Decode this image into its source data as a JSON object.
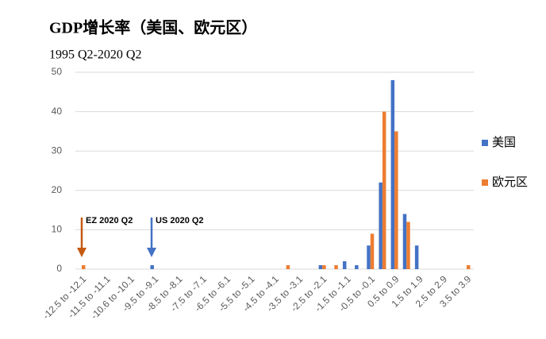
{
  "chart_data": {
    "type": "bar",
    "title": "GDP增长率（美国、欧元区）",
    "subtitle": "1995 Q2-2020 Q2",
    "categories": [
      "-12.5 to -12.1",
      null,
      "-11.5 to -11.1",
      null,
      "-10.6 to -10.1",
      null,
      "-9.5 to -9.1",
      null,
      "-8.5 to -8.1",
      null,
      "-7.5 to -7.1",
      null,
      "-6.5 to -6.1",
      null,
      "-5.5 to -5.1",
      null,
      "-4.5 to -4.1",
      null,
      "-3.5 to -3.1",
      null,
      "-2.5 to -2.1",
      null,
      "-1.5 to -1.1",
      null,
      "-0.5 to -0.1",
      null,
      "0.5 to 0.9",
      null,
      "1.5 to 1.9",
      null,
      "2.5 to 2.9",
      null,
      "3.5 to 3.9"
    ],
    "series": [
      {
        "name": "美国",
        "color": "#4472c4",
        "values": [
          0,
          0,
          0,
          0,
          0,
          0,
          1,
          0,
          0,
          0,
          0,
          0,
          0,
          0,
          0,
          0,
          0,
          0,
          0,
          0,
          1,
          0,
          2,
          1,
          6,
          22,
          48,
          14,
          6,
          0,
          0,
          0,
          0
        ]
      },
      {
        "name": "欧元区",
        "color": "#ed7d31",
        "values": [
          1,
          0,
          0,
          0,
          0,
          0,
          0,
          0,
          0,
          0,
          0,
          0,
          0,
          0,
          0,
          0,
          0,
          1,
          0,
          0,
          1,
          1,
          0,
          0,
          9,
          40,
          35,
          12,
          0,
          0,
          0,
          0,
          1
        ]
      }
    ],
    "ylim": [
      0,
      50
    ],
    "yticks": [
      0,
      10,
      20,
      30,
      40,
      50
    ],
    "grid": true,
    "legend": "right",
    "annotations": [
      "EZ 2020 Q2",
      "US 2020 Q2"
    ]
  }
}
